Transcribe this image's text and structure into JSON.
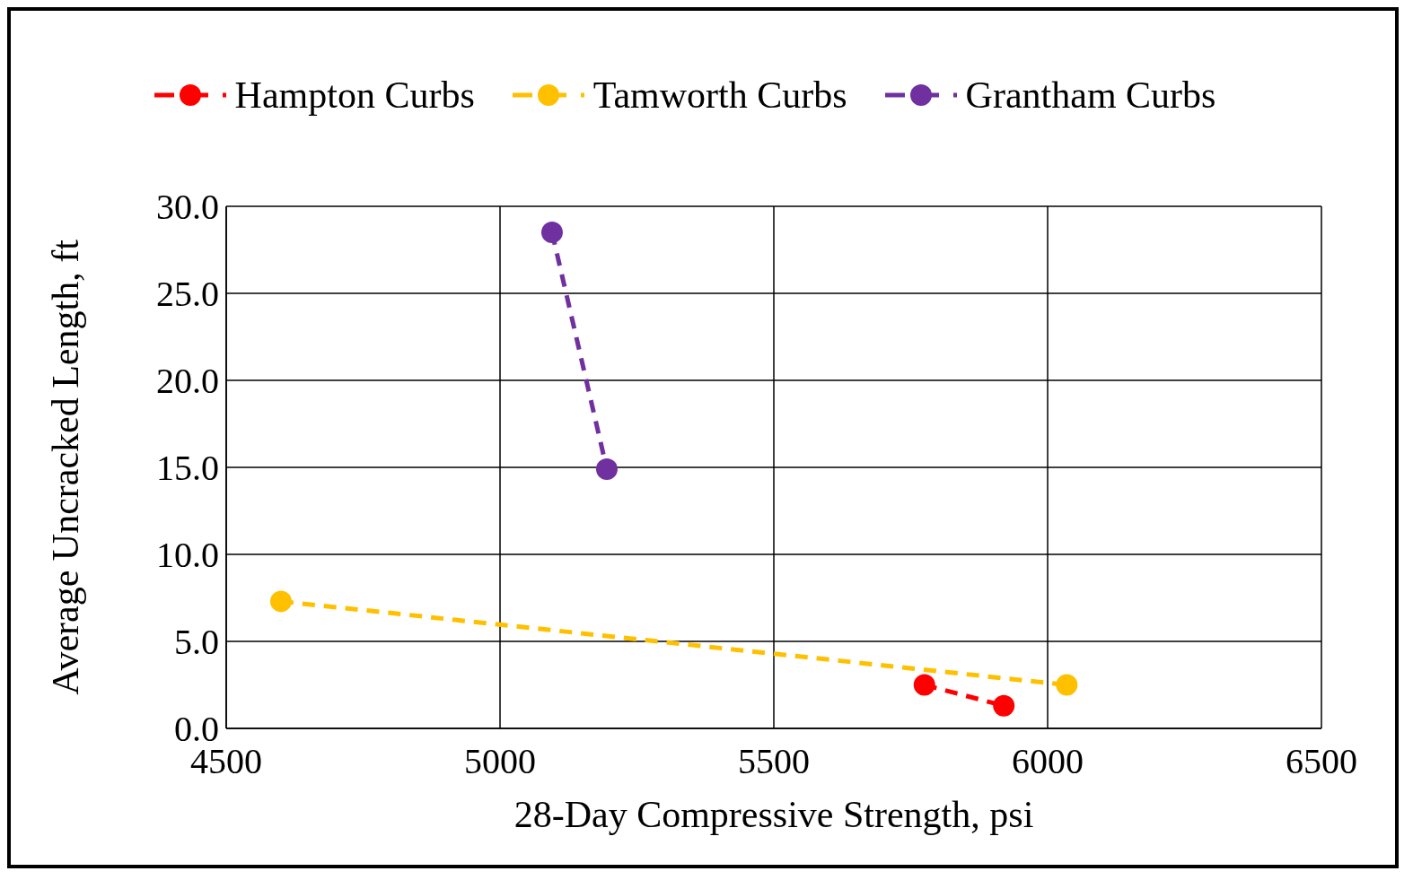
{
  "chart_data": {
    "type": "line",
    "xlabel": "28-Day Compressive Strength, psi",
    "ylabel": "Average Uncracked Length, ft",
    "series": [
      {
        "name": "Hampton Curbs",
        "color": "#ff0000",
        "x": [
          5775,
          5920
        ],
        "values": [
          2.5,
          1.3
        ]
      },
      {
        "name": "Tamworth Curbs",
        "color": "#ffc000",
        "x": [
          4600,
          6035
        ],
        "values": [
          7.3,
          2.5
        ]
      },
      {
        "name": "Grantham Curbs",
        "color": "#7030a0",
        "x": [
          5095,
          5195
        ],
        "values": [
          28.5,
          14.9
        ]
      }
    ],
    "xlim": [
      4500,
      6500
    ],
    "xticks": [
      4500,
      5000,
      5500,
      6000,
      6500
    ],
    "ylim": [
      0,
      30
    ],
    "yticks": [
      {
        "value": 0,
        "label": "0.0"
      },
      {
        "value": 5,
        "label": "5.0"
      },
      {
        "value": 10,
        "label": "10.0"
      },
      {
        "value": 15,
        "label": "15.0"
      },
      {
        "value": 20,
        "label": "20.0"
      },
      {
        "value": 25,
        "label": "25.0"
      },
      {
        "value": 30,
        "label": "30.0"
      }
    ],
    "grid": true,
    "legend": "top",
    "marker": "circle",
    "line_style": "dashed"
  }
}
